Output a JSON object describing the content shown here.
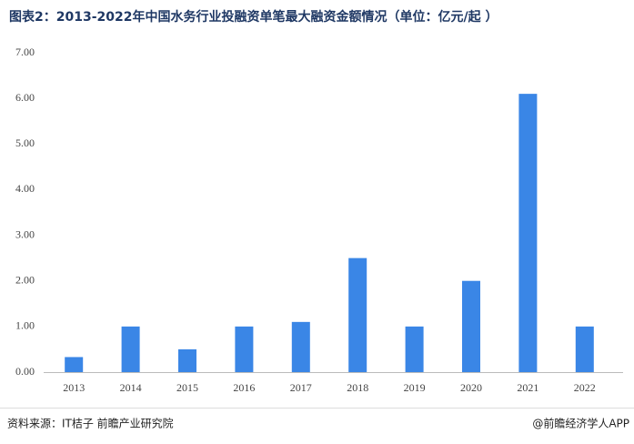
{
  "chart_data": {
    "type": "bar",
    "title": "图表2：2013-2022年中国水务行业投融资单笔最大融资金额情况（单位：亿元/起 ）",
    "categories": [
      "2013",
      "2014",
      "2015",
      "2016",
      "2017",
      "2018",
      "2019",
      "2020",
      "2021",
      "2022"
    ],
    "values": [
      0.33,
      1.0,
      0.5,
      1.0,
      1.1,
      2.5,
      1.0,
      2.0,
      6.1,
      1.0
    ],
    "color": "#3a86e6",
    "ylim": [
      0,
      7
    ],
    "yticks": [
      {
        "value": 0,
        "label": "0.00"
      },
      {
        "value": 1,
        "label": "1.00"
      },
      {
        "value": 2,
        "label": "2.00"
      },
      {
        "value": 3,
        "label": "3.00"
      },
      {
        "value": 4,
        "label": "4.00"
      },
      {
        "value": 5,
        "label": "5.00"
      },
      {
        "value": 6,
        "label": "6.00"
      },
      {
        "value": 7,
        "label": "7.00"
      }
    ],
    "grid": false,
    "source": "资料来源：IT桔子 前瞻产业研究院",
    "credit": "@前瞻经济学人APP"
  }
}
